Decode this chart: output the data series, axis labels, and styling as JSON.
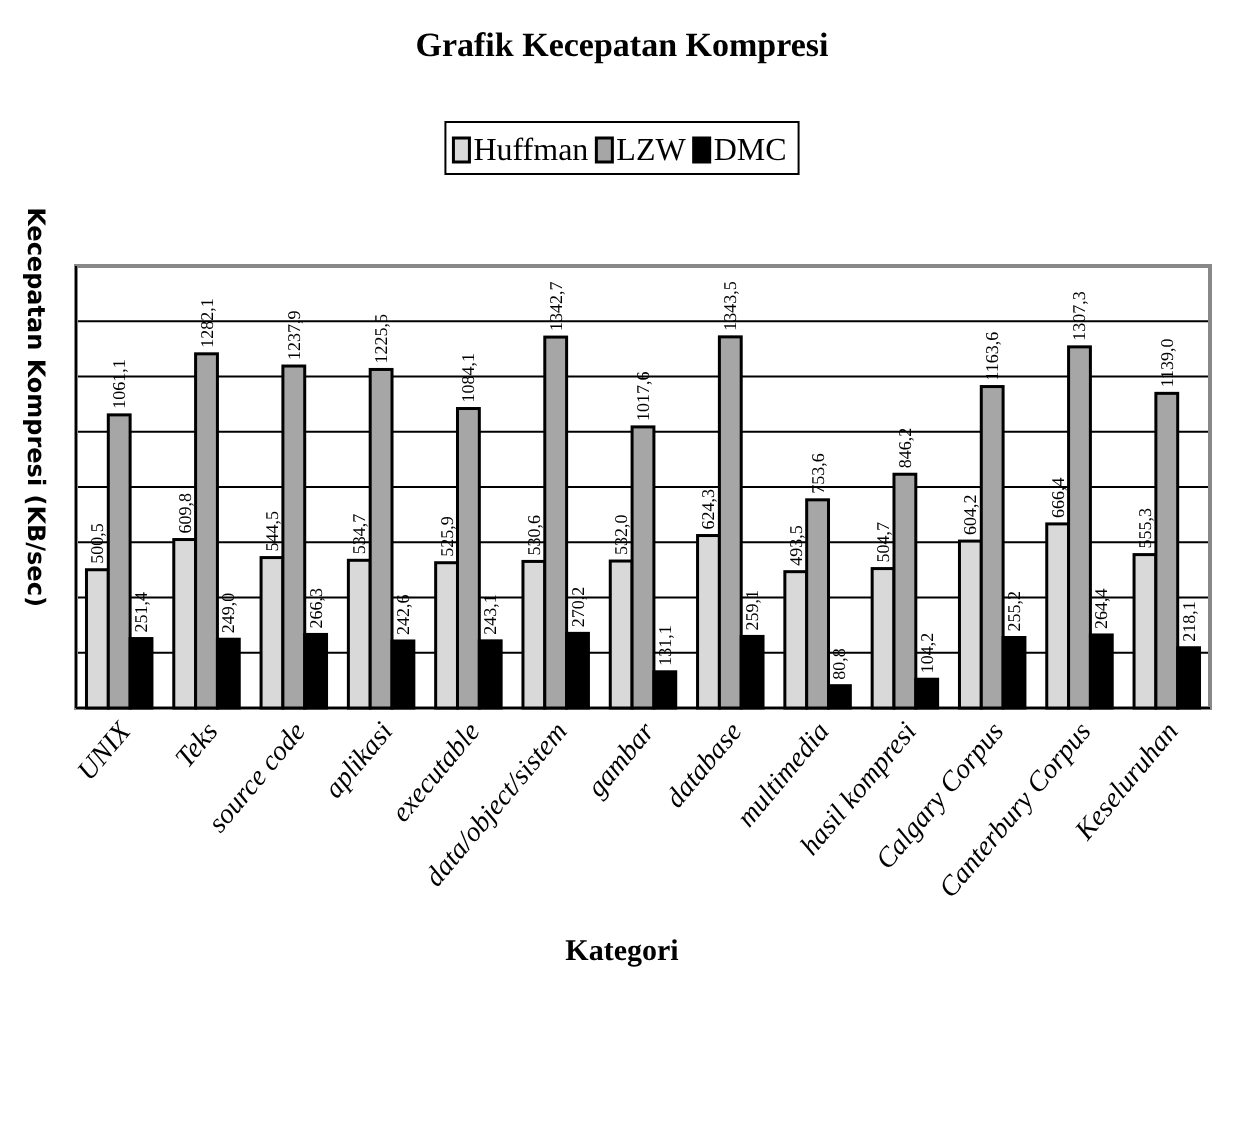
{
  "chart_data": {
    "type": "bar",
    "title": "Grafik Kecepatan Kompresi",
    "xlabel": "Kategori",
    "ylabel": "Kecepatan Kompresi (KB/sec)",
    "categories": [
      "UNIX",
      "Teks",
      "source code",
      "aplikasi",
      "executable",
      "data/object/sistem",
      "gambar",
      "database",
      "multimedia",
      "hasil kompresi",
      "Calgary Corpus",
      "Canterbury Corpus",
      "Keseluruhan"
    ],
    "series": [
      {
        "name": "Huffman",
        "color": "#d9d9d9",
        "values": [
          500.5,
          609.8,
          544.5,
          534.7,
          525.9,
          530.6,
          532.0,
          624.3,
          493.5,
          504.7,
          604.2,
          666.4,
          555.3
        ],
        "value_labels": [
          "500,5",
          "609,8",
          "544,5",
          "534,7",
          "525,9",
          "530,6",
          "532,0",
          "624,3",
          "493,5",
          "504,7",
          "604,2",
          "666,4",
          "555,3"
        ]
      },
      {
        "name": "LZW",
        "color": "#a6a6a6",
        "values": [
          1061.1,
          1282.1,
          1237.9,
          1225.5,
          1084.1,
          1342.7,
          1017.6,
          1343.5,
          753.6,
          846.2,
          1163.6,
          1307.3,
          1139.0
        ],
        "value_labels": [
          "1061,1",
          "1282,1",
          "1237,9",
          "1225,5",
          "1084,1",
          "1342,7",
          "1017,6",
          "1343,5",
          "753,6",
          "846,2",
          "1163,6",
          "1307,3",
          "1139,0"
        ]
      },
      {
        "name": "DMC",
        "color": "#000000",
        "values": [
          251.4,
          249.0,
          266.3,
          242.6,
          243.1,
          270.2,
          131.1,
          259.1,
          80.8,
          104.2,
          255.2,
          264.4,
          218.1
        ],
        "value_labels": [
          "251,4",
          "249,0",
          "266,3",
          "242,6",
          "243,1",
          "270,2",
          "131,1",
          "259,1",
          "80,8",
          "104,2",
          "255,2",
          "264,4",
          "218,1"
        ]
      }
    ],
    "ylim": [
      0,
      1600
    ],
    "yticks": [
      {
        "value": 0,
        "label": null
      },
      {
        "value": 200,
        "label": null
      },
      {
        "value": 400,
        "label": null
      },
      {
        "value": 600,
        "label": null
      },
      {
        "value": 800,
        "label": null
      },
      {
        "value": 1000,
        "label": null
      },
      {
        "value": 1200,
        "label": null
      },
      {
        "value": 1400,
        "label": null
      },
      {
        "value": 1600,
        "label": null
      }
    ],
    "tick_labels": "x",
    "grid": "y",
    "legend": "top"
  }
}
